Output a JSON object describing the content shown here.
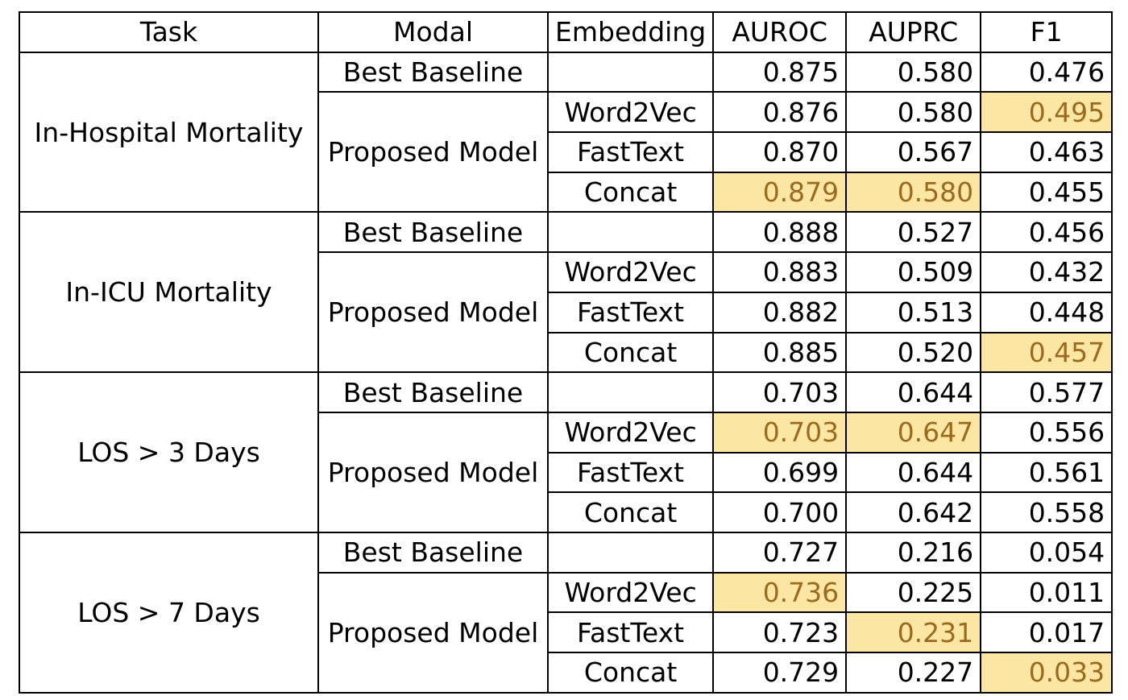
{
  "chart_data": {
    "type": "table",
    "headers": [
      "Task",
      "Modal",
      "Embedding",
      "AUROC",
      "AUPRC",
      "F1"
    ],
    "groups": [
      {
        "task": "In-Hospital Mortality",
        "baseline": {
          "modal": "Best Baseline",
          "embedding": "",
          "values": [
            "0.875",
            "0.580",
            "0.476"
          ],
          "highlight": [
            false,
            false,
            false
          ]
        },
        "proposed_label": "Proposed Model",
        "proposed": [
          {
            "embedding": "Word2Vec",
            "values": [
              "0.876",
              "0.580",
              "0.495"
            ],
            "highlight": [
              false,
              false,
              true
            ]
          },
          {
            "embedding": "FastText",
            "values": [
              "0.870",
              "0.567",
              "0.463"
            ],
            "highlight": [
              false,
              false,
              false
            ]
          },
          {
            "embedding": "Concat",
            "values": [
              "0.879",
              "0.580",
              "0.455"
            ],
            "highlight": [
              true,
              true,
              false
            ]
          }
        ]
      },
      {
        "task": "In-ICU Mortality",
        "baseline": {
          "modal": "Best Baseline",
          "embedding": "",
          "values": [
            "0.888",
            "0.527",
            "0.456"
          ],
          "highlight": [
            false,
            false,
            false
          ]
        },
        "proposed_label": "Proposed Model",
        "proposed": [
          {
            "embedding": "Word2Vec",
            "values": [
              "0.883",
              "0.509",
              "0.432"
            ],
            "highlight": [
              false,
              false,
              false
            ]
          },
          {
            "embedding": "FastText",
            "values": [
              "0.882",
              "0.513",
              "0.448"
            ],
            "highlight": [
              false,
              false,
              false
            ]
          },
          {
            "embedding": "Concat",
            "values": [
              "0.885",
              "0.520",
              "0.457"
            ],
            "highlight": [
              false,
              false,
              true
            ]
          }
        ]
      },
      {
        "task": "LOS > 3 Days",
        "baseline": {
          "modal": "Best Baseline",
          "embedding": "",
          "values": [
            "0.703",
            "0.644",
            "0.577"
          ],
          "highlight": [
            false,
            false,
            false
          ]
        },
        "proposed_label": "Proposed Model",
        "proposed": [
          {
            "embedding": "Word2Vec",
            "values": [
              "0.703",
              "0.647",
              "0.556"
            ],
            "highlight": [
              true,
              true,
              false
            ]
          },
          {
            "embedding": "FastText",
            "values": [
              "0.699",
              "0.644",
              "0.561"
            ],
            "highlight": [
              false,
              false,
              false
            ]
          },
          {
            "embedding": "Concat",
            "values": [
              "0.700",
              "0.642",
              "0.558"
            ],
            "highlight": [
              false,
              false,
              false
            ]
          }
        ]
      },
      {
        "task": "LOS > 7 Days",
        "baseline": {
          "modal": "Best Baseline",
          "embedding": "",
          "values": [
            "0.727",
            "0.216",
            "0.054"
          ],
          "highlight": [
            false,
            false,
            false
          ]
        },
        "proposed_label": "Proposed Model",
        "proposed": [
          {
            "embedding": "Word2Vec",
            "values": [
              "0.736",
              "0.225",
              "0.011"
            ],
            "highlight": [
              true,
              false,
              false
            ]
          },
          {
            "embedding": "FastText",
            "values": [
              "0.723",
              "0.231",
              "0.017"
            ],
            "highlight": [
              false,
              true,
              false
            ]
          },
          {
            "embedding": "Concat",
            "values": [
              "0.729",
              "0.227",
              "0.033"
            ],
            "highlight": [
              false,
              false,
              true
            ]
          }
        ]
      }
    ],
    "highlight_color": "#fce6a4",
    "highlight_text_color": "#9a6a1f"
  }
}
